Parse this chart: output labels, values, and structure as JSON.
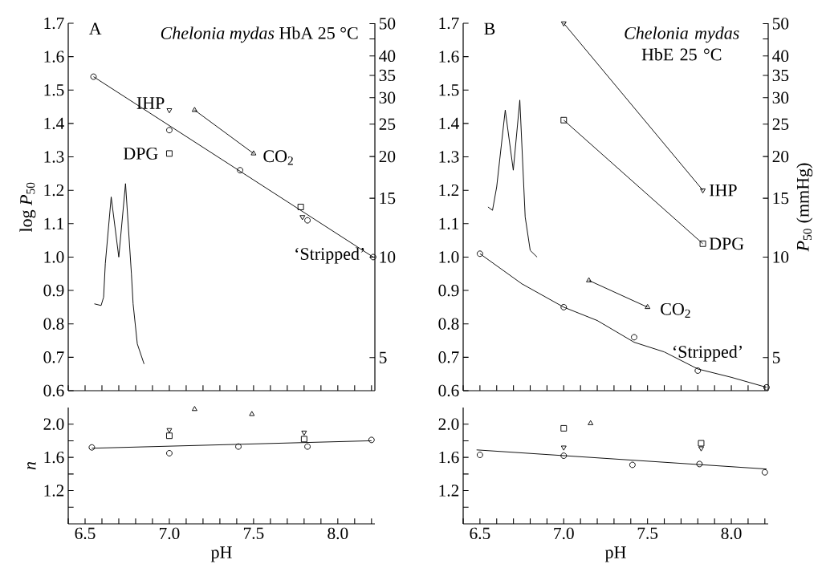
{
  "chart_data": [
    {
      "type": "scatter",
      "title": "A",
      "subtitle": "*Chelonia mydas* HbA 25 °C",
      "ylabel": "log *P*$_{50}$",
      "xlim": [
        6.4,
        8.22
      ],
      "ylim": [
        0.6,
        1.7
      ],
      "y2lim": [
        3.981,
        50.12
      ],
      "log": "y2",
      "tick_labels": "y",
      "xticks": [
        6.4,
        6.5,
        6.6,
        6.7,
        6.8,
        6.9,
        7,
        7.1,
        7.2,
        7.3,
        7.4,
        7.5,
        7.6,
        7.7,
        7.8,
        7.9,
        8,
        8.1,
        8.2
      ],
      "yticks": [
        0.6,
        0.7,
        0.8,
        0.9,
        {
          "value": 1,
          "label": "1.0"
        },
        1.1,
        1.2,
        1.3,
        1.4,
        1.5,
        1.6,
        1.7
      ],
      "y2ticks": [
        5,
        10,
        15,
        20,
        25,
        30,
        35,
        40,
        {
          "value": 45,
          "label": null
        },
        50
      ],
      "series": [
        {
          "name": "‘Stripped’",
          "type": "scatter",
          "marker": "circle",
          "color": "#000000",
          "x": [
            6.55,
            7.0,
            7.42,
            7.82,
            8.21
          ],
          "values": [
            1.54,
            1.38,
            1.26,
            1.11,
            1.0
          ]
        },
        {
          "type": "line",
          "marker": "none",
          "color": "#000000",
          "x": [
            6.55,
            8.21
          ],
          "values": [
            1.54,
            1.0
          ]
        },
        {
          "name": "IHP",
          "type": "scatter",
          "marker": "triangle-down",
          "color": "#000000",
          "x": [
            7.0,
            7.79
          ],
          "values": [
            1.44,
            1.12
          ]
        },
        {
          "name": "DPG",
          "type": "scatter",
          "marker": "square",
          "color": "#000000",
          "x": [
            7.0,
            7.78
          ],
          "values": [
            1.31,
            1.15
          ]
        },
        {
          "name": "CO$_{2}$",
          "type": "line",
          "marker": "triangle",
          "color": "#000000",
          "x": [
            7.15,
            7.5
          ],
          "values": [
            1.44,
            1.31
          ]
        },
        {
          "type": "line",
          "marker": "none",
          "color": "#000000",
          "x": [
            6.555,
            6.595,
            6.61,
            6.62,
            6.655,
            6.7,
            6.74,
            6.775,
            6.785,
            6.81,
            6.85
          ],
          "values": [
            0.86,
            0.855,
            0.88,
            0.98,
            1.18,
            1.0,
            1.22,
            0.95,
            0.86,
            0.74,
            0.68
          ]
        }
      ]
    },
    {
      "type": "scatter",
      "title": "B",
      "subtitle": "*Chelonia mydas* HbE 25 °C",
      "y2label": "*P*$_{50}$ (mmHg)",
      "xlim": [
        6.4,
        8.22
      ],
      "ylim": [
        0.6,
        1.7
      ],
      "y2lim": [
        3.981,
        50.12
      ],
      "log": "y2",
      "tick_labels": "y",
      "xticks": [
        6.4,
        6.5,
        6.6,
        6.7,
        6.8,
        6.9,
        7,
        7.1,
        7.2,
        7.3,
        7.4,
        7.5,
        7.6,
        7.7,
        7.8,
        7.9,
        8,
        8.1,
        8.2
      ],
      "yticks": [
        0.6,
        0.7,
        0.8,
        0.9,
        {
          "value": 1,
          "label": "1.0"
        },
        1.1,
        1.2,
        1.3,
        1.4,
        1.5,
        1.6,
        1.7
      ],
      "y2ticks": [
        5,
        10,
        15,
        20,
        25,
        30,
        35,
        40,
        {
          "value": 45,
          "label": null
        },
        50
      ],
      "series": [
        {
          "name": "IHP",
          "type": "line",
          "marker": "triangle-down",
          "color": "#000000",
          "x": [
            7.0,
            7.83
          ],
          "values": [
            1.7,
            1.2
          ]
        },
        {
          "name": "DPG",
          "type": "line",
          "marker": "square",
          "color": "#000000",
          "x": [
            7.0,
            7.83
          ],
          "values": [
            1.41,
            1.04
          ]
        },
        {
          "name": "CO$_{2}$",
          "type": "line",
          "marker": "triangle",
          "color": "#000000",
          "x": [
            7.15,
            7.5
          ],
          "values": [
            0.93,
            0.85
          ]
        },
        {
          "name": "‘Stripped’",
          "type": "scatter",
          "marker": "circle",
          "color": "#000000",
          "x": [
            6.5,
            7.0,
            7.42,
            7.8,
            8.21
          ],
          "values": [
            1.01,
            0.85,
            0.76,
            0.66,
            0.61
          ]
        },
        {
          "type": "line",
          "marker": "none",
          "color": "#000000",
          "x": [
            6.5,
            6.75,
            7.0,
            7.2,
            7.42,
            7.6,
            7.8,
            8.0,
            8.21
          ],
          "values": [
            1.01,
            0.92,
            0.85,
            0.81,
            0.745,
            0.716,
            0.665,
            0.64,
            0.61
          ]
        },
        {
          "type": "line",
          "marker": "none",
          "color": "#000000",
          "x": [
            6.548,
            6.575,
            6.6,
            6.651,
            6.699,
            6.738,
            6.77,
            6.8,
            6.841
          ],
          "values": [
            1.15,
            1.14,
            1.21,
            1.44,
            1.26,
            1.47,
            1.12,
            1.02,
            1.0
          ]
        }
      ]
    },
    {
      "type": "scatter",
      "ylabel": "n",
      "xlabel": "pH",
      "xlim": [
        6.4,
        8.22
      ],
      "ylim": [
        0.8,
        2.2
      ],
      "xticks": [
        {
          "value": 6.4,
          "label": null
        },
        6.5,
        {
          "value": 6.6,
          "label": null
        },
        {
          "value": 6.7,
          "label": null
        },
        {
          "value": 6.8,
          "label": null
        },
        {
          "value": 6.9,
          "label": null
        },
        {
          "value": 7,
          "label": "7.0"
        },
        {
          "value": 7.1,
          "label": null
        },
        {
          "value": 7.2,
          "label": null
        },
        {
          "value": 7.3,
          "label": null
        },
        {
          "value": 7.4,
          "label": null
        },
        7.5,
        {
          "value": 7.6,
          "label": null
        },
        {
          "value": 7.7,
          "label": null
        },
        {
          "value": 7.8,
          "label": null
        },
        {
          "value": 7.9,
          "label": null
        },
        {
          "value": 8,
          "label": "8.0"
        },
        {
          "value": 8.1,
          "label": null
        },
        {
          "value": 8.2,
          "label": null
        }
      ],
      "yticks": [
        {
          "value": 1,
          "label": null
        },
        1.2,
        {
          "value": 1.4,
          "label": null
        },
        1.6,
        {
          "value": 1.8,
          "label": null
        },
        {
          "value": 2,
          "label": "2.0"
        }
      ],
      "series": [
        {
          "type": "scatter",
          "marker": "circle",
          "color": "#000000",
          "x": [
            6.54,
            7.0,
            7.41,
            7.82,
            8.2
          ],
          "values": [
            1.72,
            1.65,
            1.73,
            1.73,
            1.81
          ]
        },
        {
          "type": "line",
          "marker": "none",
          "color": "#000000",
          "x": [
            6.54,
            8.2
          ],
          "values": [
            1.71,
            1.8
          ]
        },
        {
          "type": "scatter",
          "marker": "triangle-down",
          "color": "#000000",
          "x": [
            7.0,
            7.8
          ],
          "values": [
            1.93,
            1.9
          ]
        },
        {
          "type": "scatter",
          "marker": "square",
          "color": "#000000",
          "x": [
            7.0,
            7.8
          ],
          "values": [
            1.86,
            1.82
          ]
        },
        {
          "type": "scatter",
          "marker": "triangle",
          "color": "#000000",
          "x": [
            7.15,
            7.49
          ],
          "values": [
            2.18,
            2.12
          ]
        }
      ]
    },
    {
      "type": "scatter",
      "xlabel": "pH",
      "xlim": [
        6.4,
        8.22
      ],
      "ylim": [
        0.8,
        2.2
      ],
      "xticks": [
        {
          "value": 6.4,
          "label": null
        },
        6.5,
        {
          "value": 6.6,
          "label": null
        },
        {
          "value": 6.7,
          "label": null
        },
        {
          "value": 6.8,
          "label": null
        },
        {
          "value": 6.9,
          "label": null
        },
        {
          "value": 7,
          "label": "7.0"
        },
        {
          "value": 7.1,
          "label": null
        },
        {
          "value": 7.2,
          "label": null
        },
        {
          "value": 7.3,
          "label": null
        },
        {
          "value": 7.4,
          "label": null
        },
        7.5,
        {
          "value": 7.6,
          "label": null
        },
        {
          "value": 7.7,
          "label": null
        },
        {
          "value": 7.8,
          "label": null
        },
        {
          "value": 7.9,
          "label": null
        },
        {
          "value": 8,
          "label": "8.0"
        },
        {
          "value": 8.1,
          "label": null
        },
        {
          "value": 8.2,
          "label": null
        }
      ],
      "yticks": [
        {
          "value": 1,
          "label": null
        },
        1.2,
        {
          "value": 1.4,
          "label": null
        },
        1.6,
        {
          "value": 1.8,
          "label": null
        },
        {
          "value": 2,
          "label": "2.0"
        }
      ],
      "series": [
        {
          "type": "scatter",
          "marker": "circle",
          "color": "#000000",
          "x": [
            6.5,
            7.0,
            7.41,
            7.81,
            8.2
          ],
          "values": [
            1.63,
            1.62,
            1.51,
            1.52,
            1.42
          ]
        },
        {
          "type": "line",
          "marker": "none",
          "color": "#000000",
          "x": [
            6.48,
            8.21
          ],
          "values": [
            1.69,
            1.46
          ]
        },
        {
          "type": "scatter",
          "marker": "square",
          "color": "#000000",
          "x": [
            7.0,
            7.82
          ],
          "values": [
            1.95,
            1.77
          ]
        },
        {
          "type": "scatter",
          "marker": "triangle-down",
          "color": "#000000",
          "x": [
            7.0,
            7.82
          ],
          "values": [
            1.72,
            1.71
          ]
        },
        {
          "type": "scatter",
          "marker": "triangle",
          "color": "#000000",
          "x": [
            7.16
          ],
          "values": [
            2.01
          ]
        }
      ]
    }
  ]
}
